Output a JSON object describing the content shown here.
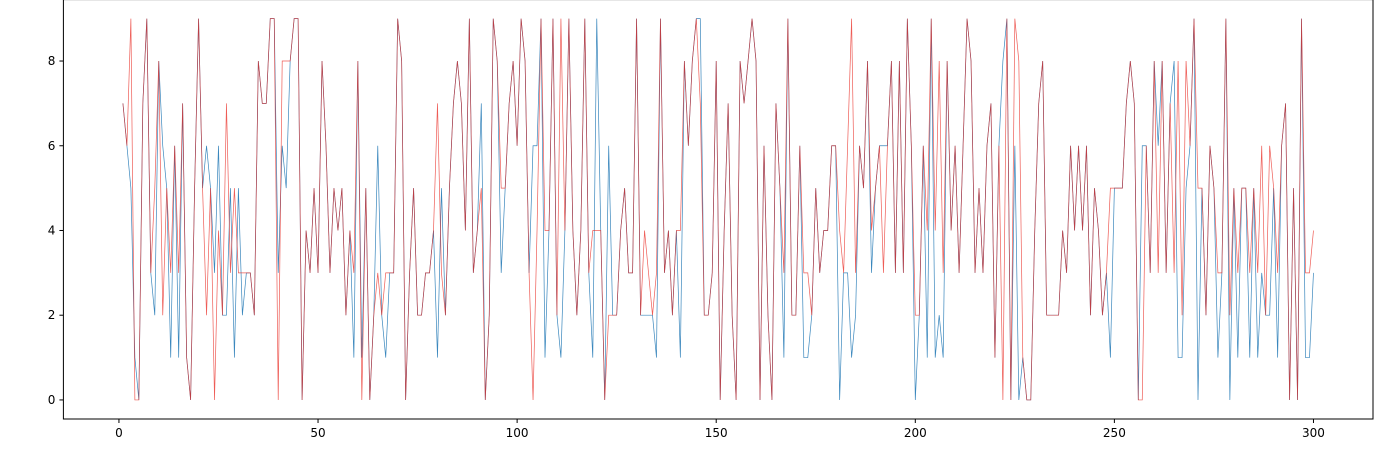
{
  "chart_data": {
    "type": "line",
    "x": [
      1,
      2,
      3,
      4,
      5,
      6,
      7,
      8,
      9,
      10,
      11,
      12,
      13,
      14,
      15,
      16,
      17,
      18,
      19,
      20,
      21,
      22,
      23,
      24,
      25,
      26,
      27,
      28,
      29,
      30,
      31,
      32,
      33,
      34,
      35,
      36,
      37,
      38,
      39,
      40,
      41,
      42,
      43,
      44,
      45,
      46,
      47,
      48,
      49,
      50,
      51,
      52,
      53,
      54,
      55,
      56,
      57,
      58,
      59,
      60,
      61,
      62,
      63,
      64,
      65,
      66,
      67,
      68,
      69,
      70,
      71,
      72,
      73,
      74,
      75,
      76,
      77,
      78,
      79,
      80,
      81,
      82,
      83,
      84,
      85,
      86,
      87,
      88,
      89,
      90,
      91,
      92,
      93,
      94,
      95,
      96,
      97,
      98,
      99,
      100,
      101,
      102,
      103,
      104,
      105,
      106,
      107,
      108,
      109,
      110,
      111,
      112,
      113,
      114,
      115,
      116,
      117,
      118,
      119,
      120,
      121,
      122,
      123,
      124,
      125,
      126,
      127,
      128,
      129,
      130,
      131,
      132,
      133,
      134,
      135,
      136,
      137,
      138,
      139,
      140,
      141,
      142,
      143,
      144,
      145,
      146,
      147,
      148,
      149,
      150,
      151,
      152,
      153,
      154,
      155,
      156,
      157,
      158,
      159,
      160,
      161,
      162,
      163,
      164,
      165,
      166,
      167,
      168,
      169,
      170,
      171,
      172,
      173,
      174,
      175,
      176,
      177,
      178,
      179,
      180,
      181,
      182,
      183,
      184,
      185,
      186,
      187,
      188,
      189,
      190,
      191,
      192,
      193,
      194,
      195,
      196,
      197,
      198,
      199,
      200,
      201,
      202,
      203,
      204,
      205,
      206,
      207,
      208,
      209,
      210,
      211,
      212,
      213,
      214,
      215,
      216,
      217,
      218,
      219,
      220,
      221,
      222,
      223,
      224,
      225,
      226,
      227,
      228,
      229,
      230,
      231,
      232,
      233,
      234,
      235,
      236,
      237,
      238,
      239,
      240,
      241,
      242,
      243,
      244,
      245,
      246,
      247,
      248,
      249,
      250,
      251,
      252,
      253,
      254,
      255,
      256,
      257,
      258,
      259,
      260,
      261,
      262,
      263,
      264,
      265,
      266,
      267,
      268,
      269,
      270,
      271,
      272,
      273,
      274,
      275,
      276,
      277,
      278,
      279,
      280,
      281,
      282,
      283,
      284,
      285,
      286,
      287,
      288,
      289,
      290,
      291,
      292,
      293,
      294,
      295,
      296,
      297,
      298,
      299,
      300
    ],
    "series": [
      {
        "color": "#3a87bd",
        "values": [
          7,
          6,
          5,
          1,
          0,
          7,
          9,
          3,
          2,
          8,
          6,
          5,
          1,
          6,
          1,
          7,
          1,
          0,
          5,
          9,
          5,
          6,
          5,
          3,
          6,
          2,
          2,
          5,
          1,
          5,
          2,
          3,
          3,
          2,
          8,
          7,
          7,
          9,
          9,
          3,
          6,
          5,
          8,
          9,
          9,
          0,
          4,
          3,
          5,
          3,
          8,
          6,
          3,
          5,
          4,
          5,
          2,
          4,
          1,
          8,
          1,
          5,
          0,
          2,
          6,
          2,
          1,
          3,
          3,
          9,
          8,
          0,
          3,
          5,
          2,
          2,
          3,
          3,
          4,
          1,
          5,
          2,
          5,
          7,
          8,
          7,
          4,
          9,
          3,
          4,
          7,
          0,
          2,
          9,
          8,
          3,
          5,
          7,
          8,
          6,
          9,
          8,
          3,
          6,
          6,
          9,
          1,
          4,
          9,
          2,
          1,
          4,
          9,
          4,
          2,
          4,
          9,
          3,
          1,
          9,
          4,
          0,
          6,
          2,
          2,
          4,
          5,
          3,
          3,
          9,
          2,
          2,
          2,
          2,
          1,
          9,
          3,
          4,
          2,
          4,
          1,
          8,
          6,
          8,
          9,
          9,
          2,
          2,
          3,
          8,
          0,
          4,
          7,
          2,
          0,
          8,
          7,
          8,
          9,
          8,
          0,
          6,
          2,
          0,
          7,
          5,
          1,
          9,
          2,
          2,
          6,
          1,
          1,
          2,
          5,
          3,
          4,
          4,
          6,
          6,
          0,
          3,
          3,
          1,
          2,
          6,
          5,
          8,
          3,
          5,
          6,
          6,
          6,
          8,
          3,
          8,
          3,
          9,
          6,
          0,
          2,
          6,
          1,
          9,
          1,
          2,
          1,
          8,
          4,
          6,
          3,
          6,
          9,
          8,
          3,
          5,
          3,
          6,
          7,
          1,
          6,
          8,
          9,
          0,
          6,
          0,
          1,
          0,
          0,
          4,
          7,
          8,
          2,
          2,
          2,
          2,
          4,
          3,
          6,
          4,
          6,
          4,
          6,
          2,
          5,
          4,
          2,
          3,
          1,
          5,
          5,
          5,
          7,
          8,
          7,
          0,
          6,
          6,
          3,
          8,
          6,
          8,
          3,
          7,
          8,
          1,
          1,
          5,
          6,
          9,
          0,
          5,
          2,
          6,
          5,
          1,
          3,
          9,
          0,
          5,
          1,
          5,
          5,
          1,
          5,
          1,
          3,
          2,
          2,
          5,
          1,
          6,
          7,
          0,
          5,
          0,
          9,
          1,
          1,
          3
        ]
      },
      {
        "color": "#e8251e",
        "values": [
          7,
          6,
          9,
          0,
          0,
          7,
          9,
          3,
          5,
          8,
          2,
          5,
          3,
          6,
          3,
          7,
          1,
          0,
          5,
          9,
          5,
          2,
          5,
          0,
          4,
          2,
          7,
          3,
          5,
          3,
          3,
          3,
          3,
          2,
          8,
          7,
          7,
          9,
          9,
          0,
          8,
          8,
          8,
          9,
          9,
          0,
          4,
          3,
          5,
          3,
          8,
          6,
          3,
          5,
          4,
          5,
          2,
          4,
          3,
          8,
          0,
          5,
          0,
          2,
          3,
          2,
          3,
          3,
          3,
          9,
          8,
          0,
          3,
          5,
          2,
          2,
          3,
          3,
          4,
          7,
          3,
          2,
          5,
          7,
          8,
          7,
          4,
          9,
          3,
          4,
          5,
          0,
          2,
          9,
          8,
          5,
          5,
          7,
          8,
          6,
          9,
          8,
          3,
          0,
          4,
          9,
          4,
          4,
          9,
          2,
          9,
          4,
          9,
          4,
          2,
          4,
          9,
          3,
          4,
          4,
          4,
          0,
          2,
          2,
          2,
          4,
          5,
          3,
          3,
          9,
          2,
          4,
          3,
          2,
          3,
          9,
          3,
          4,
          2,
          4,
          4,
          8,
          6,
          8,
          9,
          7,
          2,
          2,
          3,
          8,
          0,
          4,
          7,
          2,
          0,
          8,
          7,
          8,
          9,
          8,
          0,
          6,
          2,
          0,
          7,
          5,
          3,
          9,
          2,
          2,
          6,
          3,
          3,
          2,
          5,
          3,
          4,
          4,
          6,
          6,
          4,
          3,
          6,
          9,
          3,
          6,
          5,
          8,
          4,
          5,
          6,
          3,
          6,
          8,
          3,
          8,
          3,
          9,
          6,
          2,
          2,
          6,
          4,
          9,
          4,
          8,
          3,
          8,
          4,
          6,
          3,
          6,
          9,
          8,
          3,
          5,
          3,
          6,
          7,
          1,
          6,
          0,
          9,
          0,
          9,
          8,
          1,
          0,
          0,
          4,
          7,
          8,
          2,
          2,
          2,
          2,
          4,
          3,
          6,
          4,
          6,
          4,
          6,
          2,
          5,
          4,
          2,
          3,
          5,
          5,
          5,
          5,
          7,
          8,
          7,
          0,
          0,
          6,
          3,
          8,
          3,
          8,
          3,
          7,
          3,
          8,
          2,
          8,
          6,
          9,
          5,
          5,
          2,
          6,
          5,
          3,
          3,
          9,
          2,
          5,
          3,
          5,
          5,
          3,
          5,
          3,
          6,
          2,
          6,
          5,
          3,
          6,
          7,
          0,
          5,
          0,
          9,
          3,
          3,
          4
        ]
      }
    ],
    "xlim": [
      -13.95,
      314.95
    ],
    "ylim": [
      -0.45,
      9.45
    ],
    "xticks": [
      0,
      50,
      100,
      150,
      200,
      250,
      300
    ],
    "yticks": [
      0,
      2,
      4,
      6,
      8
    ]
  }
}
